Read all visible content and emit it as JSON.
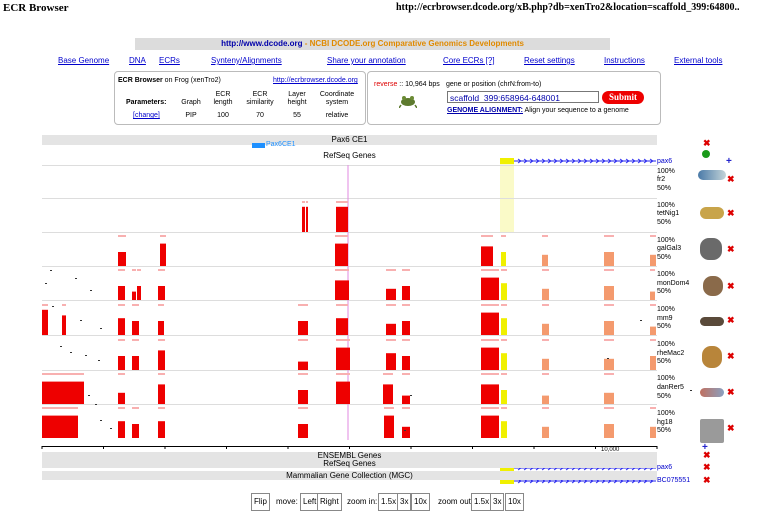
{
  "window": {
    "title": "ECR Browser",
    "url": "http://ecrbrowser.dcode.org/xB.php?db=xenTro2&location=scaffold_399:64800.."
  },
  "banner": {
    "url": "http://www.dcode.org",
    "text": " - NCBI DCODE.org Comparative Genomics Developments"
  },
  "nav": [
    "Base Genome",
    "DNA",
    "ECRs",
    "Synteny/Alignments",
    "Share your annotation",
    "Core ECRs [?]",
    "Reset settings",
    "Instructions",
    "External tools"
  ],
  "info": {
    "title": "ECR Browser",
    "organism": " on Frog (xenTro2)",
    "link": "http://ecrbrowser.dcode.org",
    "params_label": "Parameters:",
    "change": "[change]",
    "cols": [
      {
        "h": "Graph",
        "v": "PIP"
      },
      {
        "h": "ECR length",
        "v": "100"
      },
      {
        "h": "ECR similarity",
        "v": "70"
      },
      {
        "h": "Layer height",
        "v": "55"
      },
      {
        "h": "Coordinate system",
        "v": "relative"
      }
    ]
  },
  "search": {
    "reverse": "reverse",
    "length": " :: 10,964 bps",
    "hint": "gene or position (chrN:from-to)",
    "value": "scaffold_399:658964-648001",
    "submit": "Submit",
    "align_link": "GENOME ALIGNMENT:",
    "align_text": " Align your sequence to a genome"
  },
  "tracks": {
    "pax6ce1": "Pax6 CE1",
    "pax6ce1_label": "Pax6CE1",
    "refseq": "RefSeq Genes",
    "ensembl": "ENSEMBL Genes",
    "refseq2": "RefSeq Genes",
    "mgc": "Mammalian Gene Collection (MGC)",
    "gene_pax6": "pax6",
    "gene_bc": "BC075551",
    "scale": "10,000"
  },
  "species": [
    {
      "name": "fr2",
      "top": "100%",
      "bottom": "50%"
    },
    {
      "name": "tetNig1",
      "top": "100%",
      "bottom": "50%"
    },
    {
      "name": "galGal3",
      "top": "100%",
      "bottom": "50%"
    },
    {
      "name": "monDom4",
      "top": "100%",
      "bottom": "50%"
    },
    {
      "name": "mm9",
      "top": "100%",
      "bottom": "50%"
    },
    {
      "name": "rheMac2",
      "top": "100%",
      "bottom": "50%"
    },
    {
      "name": "danRer5",
      "top": "100%",
      "bottom": "50%"
    },
    {
      "name": "hg18",
      "top": "100%",
      "bottom": "50%"
    }
  ],
  "controls": {
    "flip": "Flip",
    "move": "move:",
    "left": "Left",
    "right": "Right",
    "zoom_in": "zoom in:",
    "zoom_out": "zoom out:",
    "z1": "1.5x",
    "z2": "3x",
    "z3": "10x"
  },
  "colors": {
    "ecr": "#ee0000",
    "ecr_light": "#f49a6e",
    "utr": "#f0f000",
    "gene": "#2222ee",
    "highlight": "#fafac8"
  }
}
